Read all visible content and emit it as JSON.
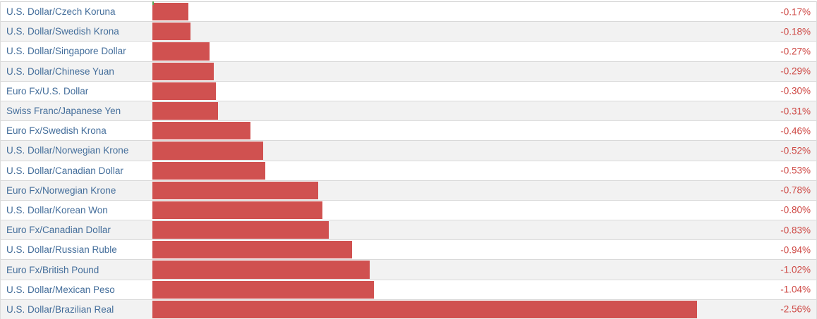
{
  "chart_data": {
    "type": "bar",
    "orientation": "horizontal",
    "title": "",
    "xlabel": "",
    "ylabel": "",
    "legend": null,
    "grid": false,
    "axis": {
      "zero_position": "left-of-bar-area",
      "zero_tick_marker": "small green tick at top of zero line",
      "max_abs_value": 2.56
    },
    "categories": [
      "U.S. Dollar/Czech Koruna",
      "U.S. Dollar/Swedish Krona",
      "U.S. Dollar/Singapore Dollar",
      "U.S. Dollar/Chinese Yuan",
      "Euro Fx/U.S. Dollar",
      "Swiss Franc/Japanese Yen",
      "Euro Fx/Swedish Krona",
      "U.S. Dollar/Norwegian Krone",
      "U.S. Dollar/Canadian Dollar",
      "Euro Fx/Norwegian Krone",
      "U.S. Dollar/Korean Won",
      "Euro Fx/Canadian Dollar",
      "U.S. Dollar/Russian Ruble",
      "Euro Fx/British Pound",
      "U.S. Dollar/Mexican Peso",
      "U.S. Dollar/Brazilian Real"
    ],
    "values": [
      -0.17,
      -0.18,
      -0.27,
      -0.29,
      -0.3,
      -0.31,
      -0.46,
      -0.52,
      -0.53,
      -0.78,
      -0.8,
      -0.83,
      -0.94,
      -1.02,
      -1.04,
      -2.56
    ],
    "value_labels": [
      "-0.17%",
      "-0.18%",
      "-0.27%",
      "-0.29%",
      "-0.30%",
      "-0.31%",
      "-0.46%",
      "-0.52%",
      "-0.53%",
      "-0.78%",
      "-0.80%",
      "-0.83%",
      "-0.94%",
      "-1.02%",
      "-1.04%",
      "-2.56%"
    ],
    "colors": {
      "bar": "#d05150",
      "value_text": "#ce4844",
      "label_text": "#446e9b",
      "row_stripe": "#f2f2f2",
      "row_divider": "#d9d9d9",
      "top_border": "#cccccc",
      "side_border": "#dcdcdc",
      "bottom_border": "#b3adad",
      "zero_tick": "#55a355"
    }
  }
}
